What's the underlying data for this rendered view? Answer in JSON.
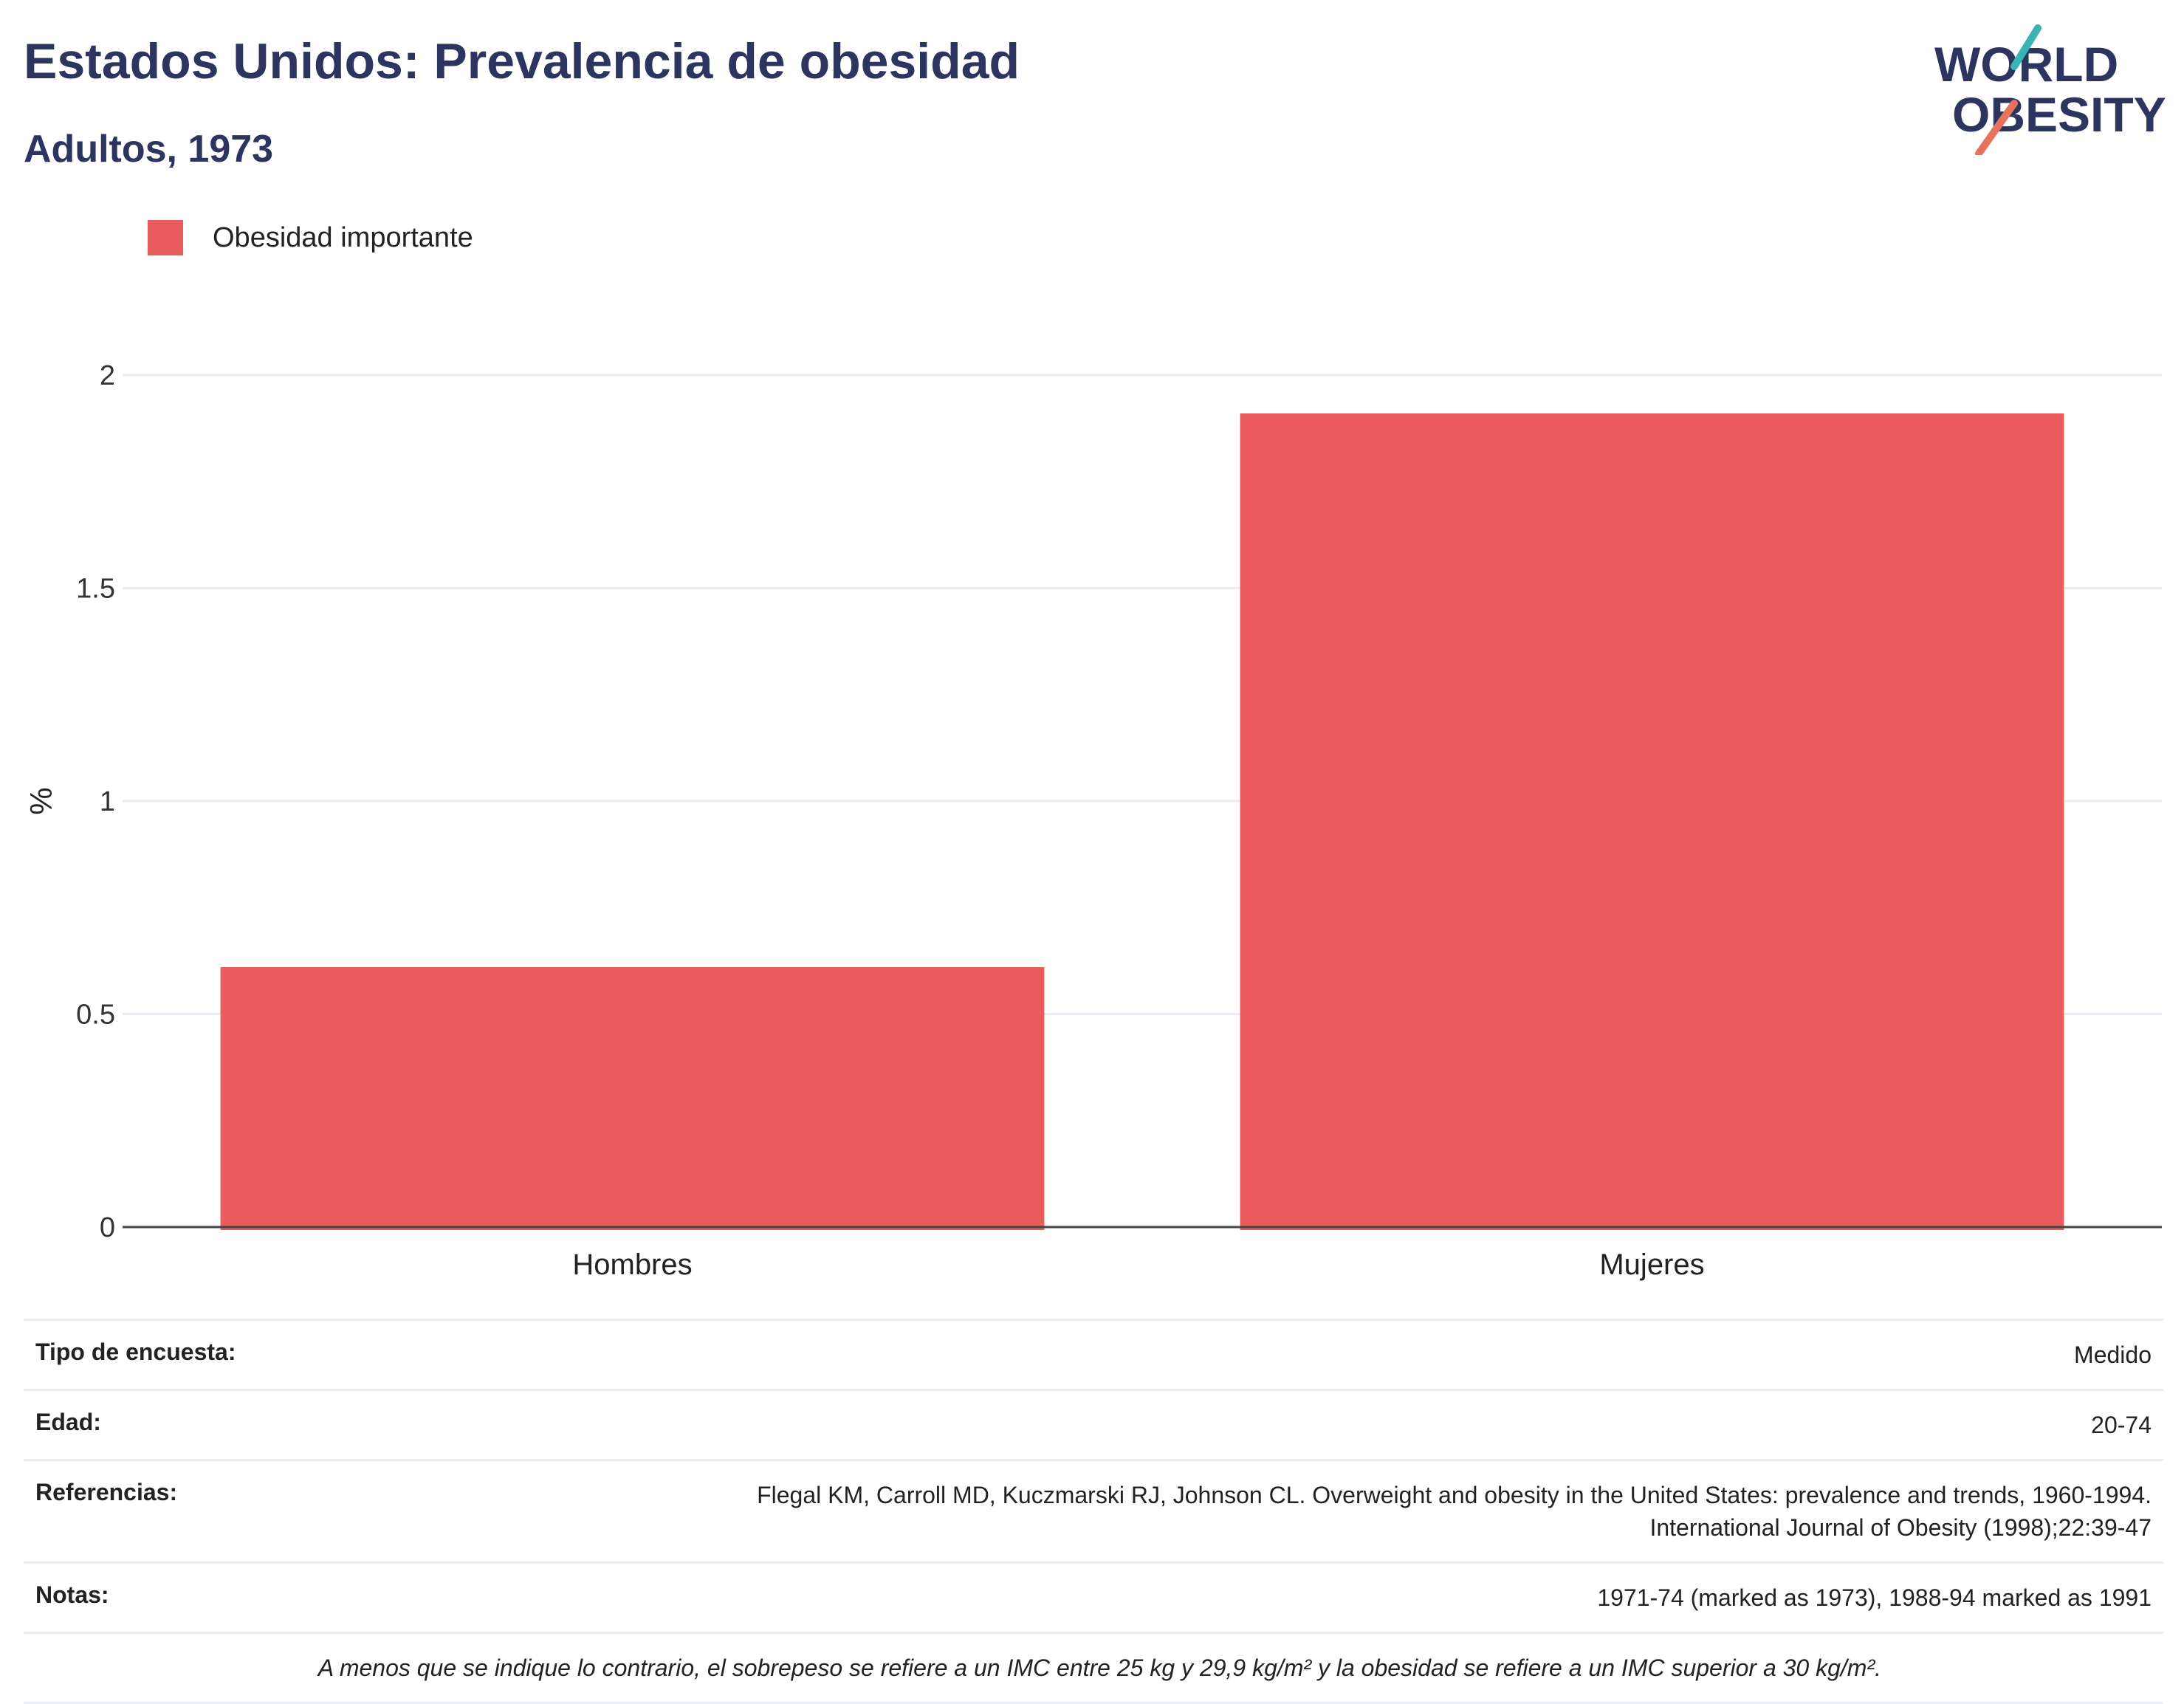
{
  "header": {
    "title": "Estados Unidos: Prevalencia de obesidad",
    "subtitle": "Adultos, 1973",
    "logo_line1": "WORLD",
    "logo_line2": "OBESITY"
  },
  "chart_data": {
    "type": "bar",
    "categories": [
      "Hombres",
      "Mujeres"
    ],
    "series": [
      {
        "name": "Obesidad importante",
        "values": [
          0.61,
          1.91
        ],
        "color": "#e95b5c"
      }
    ],
    "ylabel": "%",
    "xlabel": "",
    "ylim": [
      0,
      2
    ],
    "yticks": [
      0,
      0.5,
      1,
      1.5,
      2
    ],
    "grid": true,
    "legend": "top-left"
  },
  "info": {
    "survey_label": "Tipo de encuesta:",
    "survey_value": "Medido",
    "age_label": "Edad:",
    "age_value": "20-74",
    "refs_label": "Referencias:",
    "refs_line1": "Flegal KM, Carroll MD, Kuczmarski RJ, Johnson CL. Overweight and obesity in the United States: prevalence and trends, 1960-1994.",
    "refs_line2": "International Journal of Obesity (1998);22:39-47",
    "notes_label": "Notas:",
    "notes_value": "1971-74 (marked as 1973), 1988-94 marked as 1991",
    "footnote": "A menos que se indique lo contrario, el sobrepeso se refiere a un IMC entre 25 kg y 29,9 kg/m² y la obesidad se refiere a un IMC superior a 30 kg/m²."
  }
}
